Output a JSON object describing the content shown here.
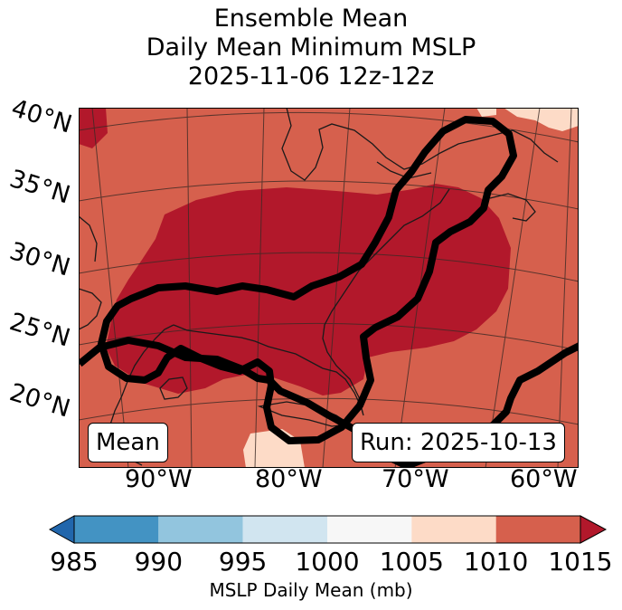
{
  "title": {
    "line1": "Ensemble Mean",
    "line2": "Daily Mean Minimum MSLP",
    "line3": "2025-11-06 12z-12z"
  },
  "map": {
    "lat_labels": [
      "40°N",
      "35°N",
      "30°N",
      "25°N",
      "20°N"
    ],
    "lon_labels": [
      "90°W",
      "80°W",
      "70°W",
      "60°W"
    ],
    "mean_box": "Mean",
    "run_box": "Run: 2025-10-13",
    "fill_colors": {
      "dark_red": "#b2182b",
      "red": "#d6604d",
      "light_peach": "#fddbc7"
    },
    "contour_color": "#000000"
  },
  "colorbar": {
    "ticks": [
      "985",
      "990",
      "995",
      "1000",
      "1005",
      "1010",
      "1015"
    ],
    "colors": [
      "#2166ac",
      "#4393c3",
      "#92c5de",
      "#d1e5f0",
      "#f7f7f7",
      "#fddbc7",
      "#d6604d",
      "#b2182b"
    ],
    "label": "MSLP Daily Mean (mb)"
  }
}
